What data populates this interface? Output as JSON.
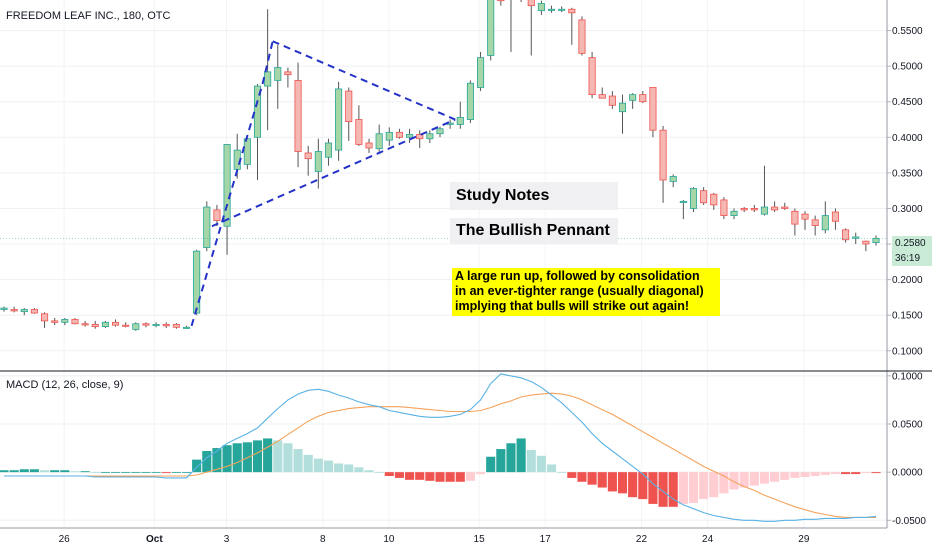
{
  "symbol_label": "FREEDOM LEAF INC., 180, OTC",
  "macd_label": "MACD (12, 26, close, 9)",
  "price_tag": "0.2580",
  "countdown": "36:19",
  "study_title": "Study Notes",
  "study_subtitle": "The Bullish Pennant",
  "study_note": "A large run up, followed by consolidation\nin an ever-tighter range (usually diagonal)\nimplying that bulls will strike out again!",
  "colors": {
    "up": "#26a69a",
    "down": "#ef5350",
    "up_fill": "#a5d6a7",
    "down_fill": "#f5b7b1",
    "macd_line": "#5ab2e6",
    "signal_line": "#f5a35c",
    "pennant": "#2432c8"
  },
  "chart_data": [
    {
      "type": "candlestick",
      "price_ylim": [
        0.08,
        0.6
      ],
      "price_ticks": [
        "0.5500",
        "0.5000",
        "0.4500",
        "0.4000",
        "0.3500",
        "0.3000",
        "0.2500",
        "0.2000",
        "0.1500",
        "0.1000"
      ],
      "date_ticks": [
        "26",
        "Oct",
        "3",
        "8",
        "10",
        "15",
        "17",
        "22",
        "24",
        "29"
      ],
      "candles": [
        {
          "o": 0.158,
          "h": 0.162,
          "l": 0.155,
          "c": 0.16
        },
        {
          "o": 0.158,
          "h": 0.162,
          "l": 0.154,
          "c": 0.156
        },
        {
          "o": 0.155,
          "h": 0.16,
          "l": 0.15,
          "c": 0.158
        },
        {
          "o": 0.158,
          "h": 0.16,
          "l": 0.152,
          "c": 0.153
        },
        {
          "o": 0.152,
          "h": 0.154,
          "l": 0.132,
          "c": 0.142
        },
        {
          "o": 0.142,
          "h": 0.146,
          "l": 0.136,
          "c": 0.14
        },
        {
          "o": 0.14,
          "h": 0.146,
          "l": 0.136,
          "c": 0.144
        },
        {
          "o": 0.144,
          "h": 0.146,
          "l": 0.137,
          "c": 0.138
        },
        {
          "o": 0.138,
          "h": 0.142,
          "l": 0.134,
          "c": 0.137
        },
        {
          "o": 0.137,
          "h": 0.142,
          "l": 0.131,
          "c": 0.134
        },
        {
          "o": 0.134,
          "h": 0.142,
          "l": 0.132,
          "c": 0.14
        },
        {
          "o": 0.14,
          "h": 0.144,
          "l": 0.134,
          "c": 0.136
        },
        {
          "o": 0.136,
          "h": 0.14,
          "l": 0.133,
          "c": 0.135
        },
        {
          "o": 0.13,
          "h": 0.14,
          "l": 0.128,
          "c": 0.138
        },
        {
          "o": 0.138,
          "h": 0.14,
          "l": 0.133,
          "c": 0.136
        },
        {
          "o": 0.136,
          "h": 0.14,
          "l": 0.133,
          "c": 0.137
        },
        {
          "o": 0.137,
          "h": 0.14,
          "l": 0.132,
          "c": 0.135
        },
        {
          "o": 0.137,
          "h": 0.139,
          "l": 0.131,
          "c": 0.133
        },
        {
          "o": 0.133,
          "h": 0.135,
          "l": 0.131,
          "c": 0.133
        },
        {
          "o": 0.153,
          "h": 0.242,
          "l": 0.15,
          "c": 0.24
        },
        {
          "o": 0.245,
          "h": 0.31,
          "l": 0.24,
          "c": 0.302
        },
        {
          "o": 0.298,
          "h": 0.305,
          "l": 0.275,
          "c": 0.283
        },
        {
          "o": 0.275,
          "h": 0.39,
          "l": 0.235,
          "c": 0.39
        },
        {
          "o": 0.355,
          "h": 0.405,
          "l": 0.342,
          "c": 0.382
        },
        {
          "o": 0.362,
          "h": 0.402,
          "l": 0.355,
          "c": 0.398
        },
        {
          "o": 0.4,
          "h": 0.475,
          "l": 0.34,
          "c": 0.472
        },
        {
          "o": 0.472,
          "h": 0.58,
          "l": 0.41,
          "c": 0.492
        },
        {
          "o": 0.48,
          "h": 0.53,
          "l": 0.44,
          "c": 0.498
        },
        {
          "o": 0.492,
          "h": 0.498,
          "l": 0.47,
          "c": 0.488
        },
        {
          "o": 0.48,
          "h": 0.505,
          "l": 0.358,
          "c": 0.38
        },
        {
          "o": 0.378,
          "h": 0.388,
          "l": 0.346,
          "c": 0.37
        },
        {
          "o": 0.352,
          "h": 0.398,
          "l": 0.328,
          "c": 0.38
        },
        {
          "o": 0.372,
          "h": 0.398,
          "l": 0.36,
          "c": 0.392
        },
        {
          "o": 0.382,
          "h": 0.478,
          "l": 0.367,
          "c": 0.468
        },
        {
          "o": 0.465,
          "h": 0.47,
          "l": 0.395,
          "c": 0.422
        },
        {
          "o": 0.425,
          "h": 0.445,
          "l": 0.388,
          "c": 0.39
        },
        {
          "o": 0.392,
          "h": 0.398,
          "l": 0.378,
          "c": 0.385
        },
        {
          "o": 0.384,
          "h": 0.418,
          "l": 0.38,
          "c": 0.405
        },
        {
          "o": 0.396,
          "h": 0.414,
          "l": 0.388,
          "c": 0.407
        },
        {
          "o": 0.407,
          "h": 0.412,
          "l": 0.398,
          "c": 0.4
        },
        {
          "o": 0.4,
          "h": 0.412,
          "l": 0.392,
          "c": 0.404
        },
        {
          "o": 0.404,
          "h": 0.41,
          "l": 0.385,
          "c": 0.398
        },
        {
          "o": 0.398,
          "h": 0.41,
          "l": 0.392,
          "c": 0.405
        },
        {
          "o": 0.405,
          "h": 0.415,
          "l": 0.4,
          "c": 0.412
        },
        {
          "o": 0.418,
          "h": 0.425,
          "l": 0.412,
          "c": 0.42
        },
        {
          "o": 0.418,
          "h": 0.45,
          "l": 0.412,
          "c": 0.428
        },
        {
          "o": 0.425,
          "h": 0.48,
          "l": 0.42,
          "c": 0.476
        },
        {
          "o": 0.47,
          "h": 0.52,
          "l": 0.465,
          "c": 0.512
        },
        {
          "o": 0.515,
          "h": 0.605,
          "l": 0.508,
          "c": 0.6
        },
        {
          "o": 0.605,
          "h": 0.61,
          "l": 0.585,
          "c": 0.592
        },
        {
          "o": 0.595,
          "h": 0.602,
          "l": 0.52,
          "c": 0.6
        },
        {
          "o": 0.6,
          "h": 0.606,
          "l": 0.59,
          "c": 0.598
        },
        {
          "o": 0.598,
          "h": 0.6,
          "l": 0.515,
          "c": 0.585
        },
        {
          "o": 0.578,
          "h": 0.592,
          "l": 0.572,
          "c": 0.588
        },
        {
          "o": 0.58,
          "h": 0.585,
          "l": 0.575,
          "c": 0.58
        },
        {
          "o": 0.58,
          "h": 0.584,
          "l": 0.576,
          "c": 0.58
        },
        {
          "o": 0.58,
          "h": 0.582,
          "l": 0.53,
          "c": 0.575
        },
        {
          "o": 0.565,
          "h": 0.57,
          "l": 0.515,
          "c": 0.518
        },
        {
          "o": 0.512,
          "h": 0.52,
          "l": 0.455,
          "c": 0.46
        },
        {
          "o": 0.46,
          "h": 0.47,
          "l": 0.455,
          "c": 0.455
        },
        {
          "o": 0.458,
          "h": 0.465,
          "l": 0.44,
          "c": 0.445
        },
        {
          "o": 0.436,
          "h": 0.46,
          "l": 0.405,
          "c": 0.448
        },
        {
          "o": 0.452,
          "h": 0.462,
          "l": 0.44,
          "c": 0.46
        },
        {
          "o": 0.46,
          "h": 0.465,
          "l": 0.448,
          "c": 0.45
        },
        {
          "o": 0.47,
          "h": 0.47,
          "l": 0.4,
          "c": 0.41
        },
        {
          "o": 0.41,
          "h": 0.416,
          "l": 0.308,
          "c": 0.34
        },
        {
          "o": 0.338,
          "h": 0.348,
          "l": 0.33,
          "c": 0.345
        },
        {
          "o": 0.31,
          "h": 0.312,
          "l": 0.285,
          "c": 0.31
        },
        {
          "o": 0.3,
          "h": 0.33,
          "l": 0.295,
          "c": 0.328
        },
        {
          "o": 0.325,
          "h": 0.33,
          "l": 0.305,
          "c": 0.308
        },
        {
          "o": 0.32,
          "h": 0.322,
          "l": 0.298,
          "c": 0.305
        },
        {
          "o": 0.312,
          "h": 0.316,
          "l": 0.285,
          "c": 0.29
        },
        {
          "o": 0.29,
          "h": 0.3,
          "l": 0.285,
          "c": 0.296
        },
        {
          "o": 0.3,
          "h": 0.302,
          "l": 0.295,
          "c": 0.298
        },
        {
          "o": 0.3,
          "h": 0.305,
          "l": 0.295,
          "c": 0.298
        },
        {
          "o": 0.292,
          "h": 0.36,
          "l": 0.29,
          "c": 0.302
        },
        {
          "o": 0.302,
          "h": 0.31,
          "l": 0.295,
          "c": 0.298
        },
        {
          "o": 0.302,
          "h": 0.308,
          "l": 0.298,
          "c": 0.3
        },
        {
          "o": 0.296,
          "h": 0.3,
          "l": 0.262,
          "c": 0.278
        },
        {
          "o": 0.292,
          "h": 0.296,
          "l": 0.27,
          "c": 0.285
        },
        {
          "o": 0.284,
          "h": 0.29,
          "l": 0.262,
          "c": 0.276
        },
        {
          "o": 0.27,
          "h": 0.31,
          "l": 0.265,
          "c": 0.29
        },
        {
          "o": 0.295,
          "h": 0.3,
          "l": 0.27,
          "c": 0.282
        },
        {
          "o": 0.27,
          "h": 0.272,
          "l": 0.252,
          "c": 0.256
        },
        {
          "o": 0.258,
          "h": 0.266,
          "l": 0.25,
          "c": 0.26
        },
        {
          "o": 0.254,
          "h": 0.255,
          "l": 0.24,
          "c": 0.25
        },
        {
          "o": 0.252,
          "h": 0.262,
          "l": 0.248,
          "c": 0.258
        }
      ]
    },
    {
      "type": "macd",
      "params": [
        12,
        26,
        "close",
        9
      ],
      "ylim": [
        -0.058,
        0.104
      ],
      "ticks": [
        "0.1000",
        "0.0500",
        "0.0000",
        "-0.0500"
      ],
      "histogram": [
        0.002,
        0.002,
        0.003,
        0.003,
        0.002,
        0.002,
        0.002,
        0.001,
        0.001,
        0.0,
        0.0,
        0.0,
        0.0,
        0.0,
        0.0,
        0.0,
        -0.001,
        0.0,
        0.0,
        0.013,
        0.022,
        0.025,
        0.028,
        0.03,
        0.031,
        0.033,
        0.035,
        0.033,
        0.03,
        0.024,
        0.018,
        0.014,
        0.012,
        0.009,
        0.008,
        0.005,
        0.002,
        0.0,
        -0.004,
        -0.006,
        -0.008,
        -0.008,
        -0.009,
        -0.01,
        -0.01,
        -0.01,
        -0.009,
        -0.002,
        0.016,
        0.024,
        0.03,
        0.035,
        0.023,
        0.017,
        0.008,
        0.0,
        -0.006,
        -0.01,
        -0.013,
        -0.016,
        -0.02,
        -0.022,
        -0.026,
        -0.028,
        -0.033,
        -0.036,
        -0.036,
        -0.033,
        -0.032,
        -0.028,
        -0.026,
        -0.022,
        -0.018,
        -0.016,
        -0.014,
        -0.012,
        -0.01,
        -0.008,
        -0.006,
        -0.005,
        -0.004,
        -0.003,
        -0.002,
        -0.002,
        -0.002,
        -0.001,
        -0.001
      ],
      "macd": [
        -0.004,
        -0.004,
        -0.004,
        -0.004,
        -0.004,
        -0.004,
        -0.004,
        -0.004,
        -0.004,
        -0.005,
        -0.005,
        -0.005,
        -0.005,
        -0.005,
        -0.005,
        -0.005,
        -0.006,
        -0.006,
        -0.006,
        0.005,
        0.015,
        0.022,
        0.03,
        0.035,
        0.04,
        0.046,
        0.056,
        0.066,
        0.075,
        0.081,
        0.085,
        0.086,
        0.084,
        0.08,
        0.077,
        0.073,
        0.07,
        0.068,
        0.064,
        0.062,
        0.06,
        0.058,
        0.057,
        0.057,
        0.058,
        0.06,
        0.065,
        0.075,
        0.092,
        0.102,
        0.1,
        0.098,
        0.094,
        0.088,
        0.08,
        0.072,
        0.062,
        0.052,
        0.04,
        0.03,
        0.022,
        0.014,
        0.006,
        -0.002,
        -0.012,
        -0.02,
        -0.028,
        -0.034,
        -0.038,
        -0.042,
        -0.045,
        -0.047,
        -0.049,
        -0.05,
        -0.05,
        -0.051,
        -0.051,
        -0.05,
        -0.05,
        -0.049,
        -0.049,
        -0.048,
        -0.048,
        -0.048,
        -0.047,
        -0.047,
        -0.046
      ],
      "signal": [
        -0.004,
        -0.004,
        -0.004,
        -0.004,
        -0.004,
        -0.004,
        -0.004,
        -0.004,
        -0.004,
        -0.004,
        -0.004,
        -0.004,
        -0.004,
        -0.004,
        -0.004,
        -0.004,
        -0.004,
        -0.004,
        -0.004,
        -0.003,
        0.0,
        0.003,
        0.006,
        0.01,
        0.015,
        0.02,
        0.026,
        0.032,
        0.039,
        0.046,
        0.053,
        0.058,
        0.062,
        0.064,
        0.066,
        0.067,
        0.068,
        0.068,
        0.068,
        0.068,
        0.067,
        0.066,
        0.065,
        0.064,
        0.063,
        0.063,
        0.063,
        0.064,
        0.067,
        0.071,
        0.074,
        0.078,
        0.08,
        0.081,
        0.082,
        0.081,
        0.079,
        0.075,
        0.07,
        0.065,
        0.06,
        0.054,
        0.048,
        0.042,
        0.036,
        0.03,
        0.024,
        0.018,
        0.012,
        0.006,
        0.001,
        -0.004,
        -0.01,
        -0.015,
        -0.019,
        -0.024,
        -0.028,
        -0.032,
        -0.036,
        -0.039,
        -0.042,
        -0.044,
        -0.046,
        -0.047,
        -0.047,
        -0.047,
        -0.047
      ]
    }
  ]
}
